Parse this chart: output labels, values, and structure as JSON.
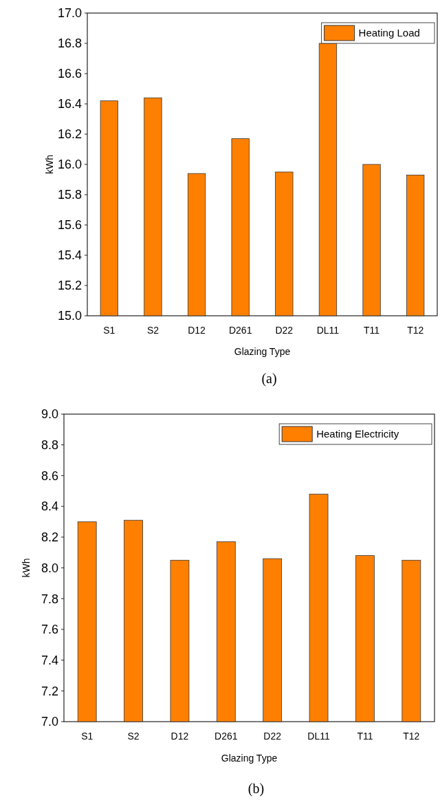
{
  "chart_data": [
    {
      "type": "bar",
      "categories": [
        "S1",
        "S2",
        "D12",
        "D261",
        "D22",
        "DL11",
        "T11",
        "T12"
      ],
      "xlabel": "Glazing Type",
      "ylabel": "kWh",
      "series": [
        {
          "name": "Heating Load",
          "color": "#ff8000",
          "values": [
            16.42,
            16.44,
            15.94,
            16.17,
            15.95,
            16.8,
            16.0,
            15.93
          ]
        }
      ],
      "ylim": [
        15,
        17
      ],
      "yticks": [
        {
          "value": 15,
          "label": "15.0"
        },
        {
          "value": 15.2,
          "label": "15.2"
        },
        {
          "value": 15.4,
          "label": "15.4"
        },
        {
          "value": 15.6,
          "label": "15.6"
        },
        {
          "value": 15.8,
          "label": "15.8"
        },
        {
          "value": 16,
          "label": "16.0"
        },
        {
          "value": 16.2,
          "label": "16.2"
        },
        {
          "value": 16.4,
          "label": "16.4"
        },
        {
          "value": 16.6,
          "label": "16.6"
        },
        {
          "value": 16.8,
          "label": "16.8"
        },
        {
          "value": 17,
          "label": "17.0"
        }
      ],
      "grid": false,
      "legend": "top right",
      "annotations": [
        "(a)"
      ]
    },
    {
      "type": "bar",
      "categories": [
        "S1",
        "S2",
        "D12",
        "D261",
        "D22",
        "DL11",
        "T11",
        "T12"
      ],
      "xlabel": "Glazing Type",
      "ylabel": "kWh",
      "series": [
        {
          "name": "Heating Electricity",
          "color": "#ff8000",
          "values": [
            8.3,
            8.31,
            8.05,
            8.17,
            8.06,
            8.48,
            8.08,
            8.05
          ]
        }
      ],
      "ylim": [
        7,
        9
      ],
      "yticks": [
        {
          "value": 7,
          "label": "7.0"
        },
        {
          "value": 7.2,
          "label": "7.2"
        },
        {
          "value": 7.4,
          "label": "7.4"
        },
        {
          "value": 7.6,
          "label": "7.6"
        },
        {
          "value": 7.8,
          "label": "7.8"
        },
        {
          "value": 8,
          "label": "8.0"
        },
        {
          "value": 8.2,
          "label": "8.2"
        },
        {
          "value": 8.4,
          "label": "8.4"
        },
        {
          "value": 8.6,
          "label": "8.6"
        },
        {
          "value": 8.8,
          "label": "8.8"
        },
        {
          "value": 9,
          "label": "9.0"
        }
      ],
      "grid": false,
      "legend": "top right",
      "annotations": [
        "(b)"
      ]
    }
  ]
}
